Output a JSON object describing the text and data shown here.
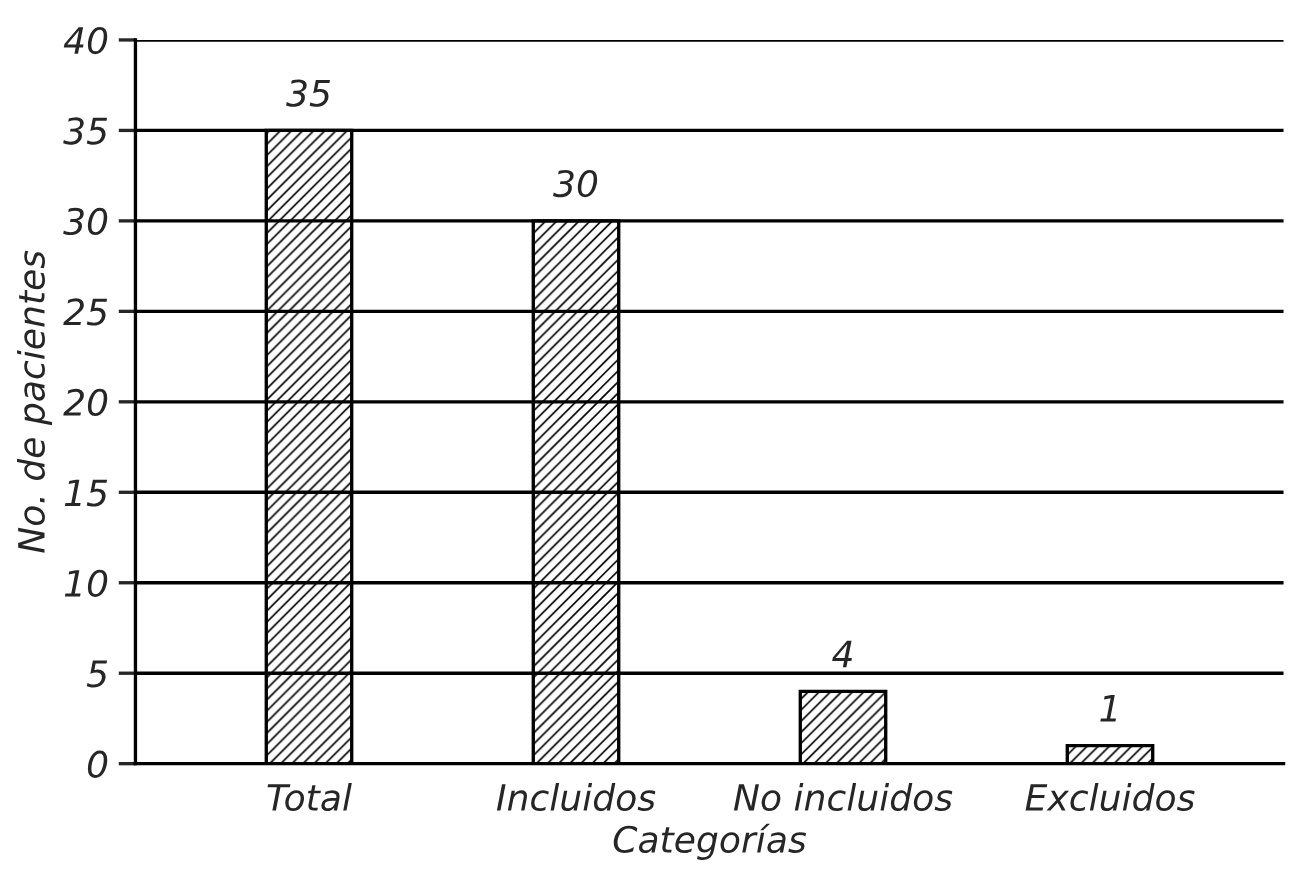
{
  "chart_data": {
    "type": "bar",
    "xlabel": "Categorías",
    "ylabel": "No. de pacientes",
    "categories": [
      "Total",
      "Incluidos",
      "No incluidos",
      "Excluidos"
    ],
    "values": [
      35,
      30,
      4,
      1
    ],
    "color": "#000000",
    "ylim": [
      0,
      40
    ],
    "yticks": [
      0,
      5,
      10,
      15,
      20,
      25,
      30,
      35,
      40
    ],
    "grid": "y",
    "data_labels": true
  }
}
